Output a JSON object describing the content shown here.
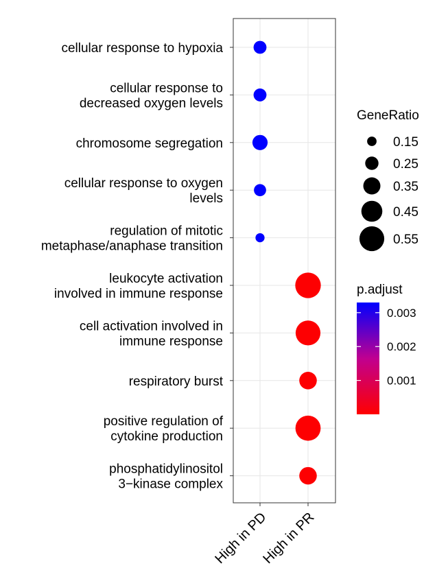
{
  "chart_data": {
    "type": "scatter",
    "categories_x": [
      "High in PD",
      "High in PR"
    ],
    "categories_y": [
      [
        "cellular response to hypoxia"
      ],
      [
        "cellular response to",
        "decreased oxygen levels"
      ],
      [
        "chromosome segregation"
      ],
      [
        "cellular response to oxygen",
        "levels"
      ],
      [
        "regulation of mitotic",
        "metaphase/anaphase transition"
      ],
      [
        "leukocyte activation",
        "involved in immune response"
      ],
      [
        "cell activation involved in",
        "immune response"
      ],
      [
        "respiratory burst"
      ],
      [
        "positive regulation of",
        "cytokine production"
      ],
      [
        "phosphatidylinositol",
        "3−kinase complex"
      ]
    ],
    "points": [
      {
        "x": "High in PD",
        "y": 0,
        "gene_ratio": 0.24,
        "p_adjust": 0.0033
      },
      {
        "x": "High in PD",
        "y": 1,
        "gene_ratio": 0.24,
        "p_adjust": 0.0033
      },
      {
        "x": "High in PD",
        "y": 2,
        "gene_ratio": 0.3,
        "p_adjust": 0.0033
      },
      {
        "x": "High in PD",
        "y": 3,
        "gene_ratio": 0.22,
        "p_adjust": 0.0033
      },
      {
        "x": "High in PD",
        "y": 4,
        "gene_ratio": 0.14,
        "p_adjust": 0.0033
      },
      {
        "x": "High in PR",
        "y": 5,
        "gene_ratio": 0.57,
        "p_adjust": 2e-05
      },
      {
        "x": "High in PR",
        "y": 6,
        "gene_ratio": 0.55,
        "p_adjust": 2e-05
      },
      {
        "x": "High in PR",
        "y": 7,
        "gene_ratio": 0.36,
        "p_adjust": 2e-05
      },
      {
        "x": "High in PR",
        "y": 8,
        "gene_ratio": 0.56,
        "p_adjust": 2e-05
      },
      {
        "x": "High in PR",
        "y": 9,
        "gene_ratio": 0.36,
        "p_adjust": 2e-05
      }
    ],
    "size_legend": {
      "title": "GeneRatio",
      "values": [
        0.15,
        0.25,
        0.35,
        0.45,
        0.55
      ],
      "labels": [
        "0.15",
        "0.25",
        "0.35",
        "0.45",
        "0.55"
      ]
    },
    "color_legend": {
      "title": "p.adjust",
      "range": [
        0,
        0.0033
      ],
      "ticks": [
        0.003,
        0.002,
        0.001
      ],
      "tick_labels": [
        "0.003",
        "0.002",
        "0.001"
      ],
      "high_color": "#0000ff",
      "low_color": "#ff0000"
    },
    "grid": true
  }
}
